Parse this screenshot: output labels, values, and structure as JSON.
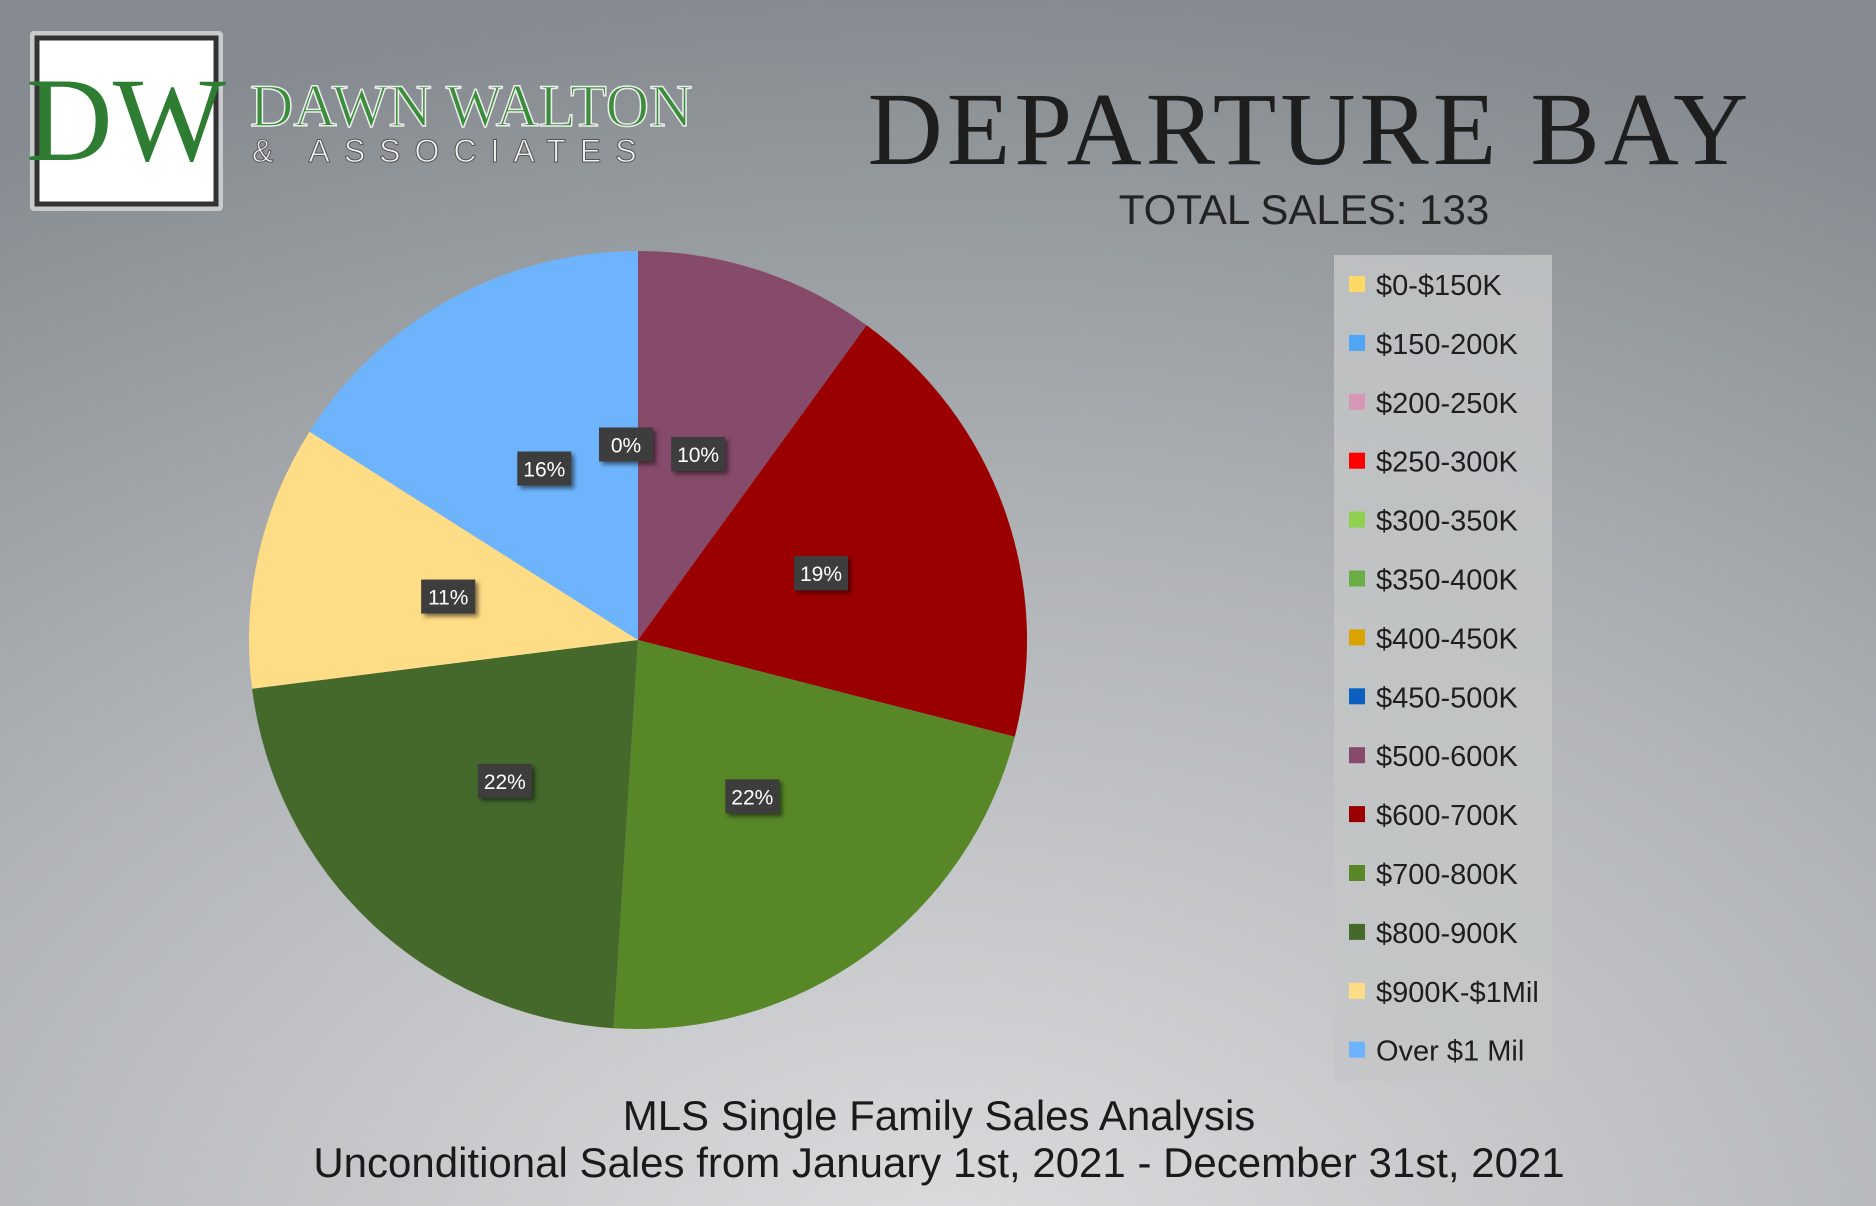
{
  "brand": {
    "initials": "DW",
    "name": "DAWN WALTON",
    "tagline": "& ASSOCIATES"
  },
  "chart_data": {
    "type": "pie",
    "title": "DEPARTURE BAY",
    "subtitle": "TOTAL SALES: 133",
    "footer": [
      "MLS Single Family Sales Analysis",
      "Unconditional Sales from January 1st, 2021 - December 31st, 2021"
    ],
    "categories": [
      "$0-$150K",
      "$150-200K",
      "$200-250K",
      "$250-300K",
      "$300-350K",
      "$350-400K",
      "$400-450K",
      "$450-500K",
      "$500-600K",
      "$600-700K",
      "$700-800K",
      "$800-900K",
      "$900K-$1Mil",
      "Over $1 Mil"
    ],
    "values": [
      null,
      null,
      null,
      null,
      null,
      null,
      null,
      0,
      10,
      19,
      22,
      22,
      11,
      16
    ],
    "value_labels": [
      null,
      null,
      null,
      null,
      null,
      null,
      null,
      "0%",
      "10%",
      "19%",
      "22%",
      "22%",
      "11%",
      "16%"
    ],
    "colors": [
      "#ffd966",
      "#4ea6f5",
      "#d896b7",
      "#ff0000",
      "#8fd14f",
      "#6aad45",
      "#d9a300",
      "#0b5fbf",
      "#864a6a",
      "#9a0000",
      "#578726",
      "#44692b",
      "#ffdd87",
      "#6eb4fc"
    ],
    "legend": "right"
  }
}
